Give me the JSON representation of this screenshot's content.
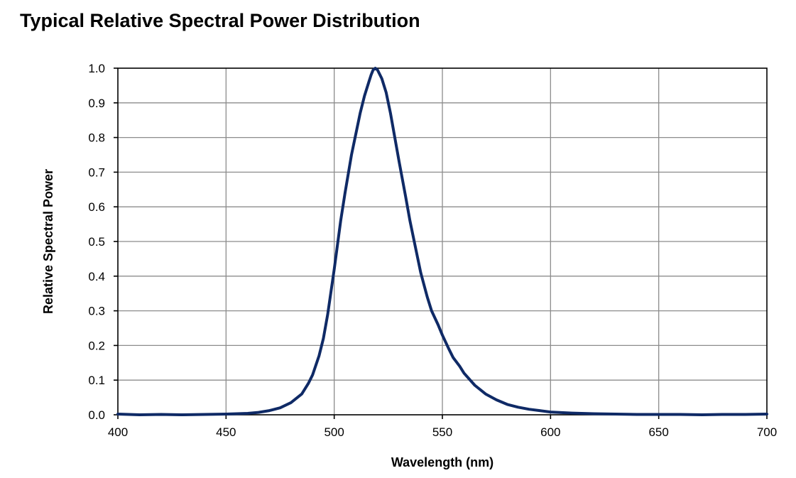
{
  "colors": {
    "series": "#0f2a66",
    "grid": "#8c8c8c",
    "axis": "#000000"
  },
  "chart_data": {
    "type": "line",
    "title": "Typical Relative Spectral Power Distribution",
    "xlabel": "Wavelength (nm)",
    "ylabel": "Relative Spectral Power",
    "xlim": [
      400,
      700
    ],
    "ylim": [
      0,
      1.0
    ],
    "xticks": [
      400,
      450,
      500,
      550,
      600,
      650,
      700
    ],
    "yticks": [
      0.0,
      0.1,
      0.2,
      0.3,
      0.4,
      0.5,
      0.6,
      0.7,
      0.8,
      0.9,
      1.0
    ],
    "xtick_labels": [
      "400",
      "450",
      "500",
      "550",
      "600",
      "650",
      "700"
    ],
    "ytick_labels": [
      "0.0",
      "0.1",
      "0.2",
      "0.3",
      "0.4",
      "0.5",
      "0.6",
      "0.7",
      "0.8",
      "0.9",
      "1.0"
    ],
    "grid": true,
    "legend": "none",
    "series": [
      {
        "x": [
          400,
          410,
          420,
          430,
          440,
          450,
          455,
          460,
          465,
          470,
          475,
          480,
          485,
          488,
          490,
          493,
          495,
          497,
          500,
          503,
          505,
          508,
          510,
          512,
          514,
          516,
          517,
          518,
          519,
          520,
          522,
          524,
          526,
          528,
          530,
          533,
          535,
          538,
          540,
          543,
          545,
          548,
          550,
          553,
          555,
          558,
          560,
          565,
          570,
          575,
          580,
          585,
          590,
          595,
          600,
          610,
          620,
          630,
          640,
          650,
          660,
          670,
          680,
          690,
          700
        ],
        "y": [
          0.002,
          0.0,
          0.001,
          0.0,
          0.001,
          0.002,
          0.003,
          0.004,
          0.007,
          0.012,
          0.02,
          0.035,
          0.06,
          0.09,
          0.115,
          0.17,
          0.22,
          0.29,
          0.42,
          0.56,
          0.64,
          0.75,
          0.81,
          0.87,
          0.92,
          0.96,
          0.98,
          0.995,
          1.0,
          0.995,
          0.97,
          0.93,
          0.87,
          0.8,
          0.73,
          0.63,
          0.56,
          0.47,
          0.41,
          0.34,
          0.3,
          0.26,
          0.23,
          0.19,
          0.165,
          0.14,
          0.12,
          0.085,
          0.06,
          0.043,
          0.03,
          0.022,
          0.016,
          0.012,
          0.008,
          0.005,
          0.003,
          0.002,
          0.001,
          0.001,
          0.001,
          0.0,
          0.001,
          0.001,
          0.002
        ]
      }
    ]
  }
}
